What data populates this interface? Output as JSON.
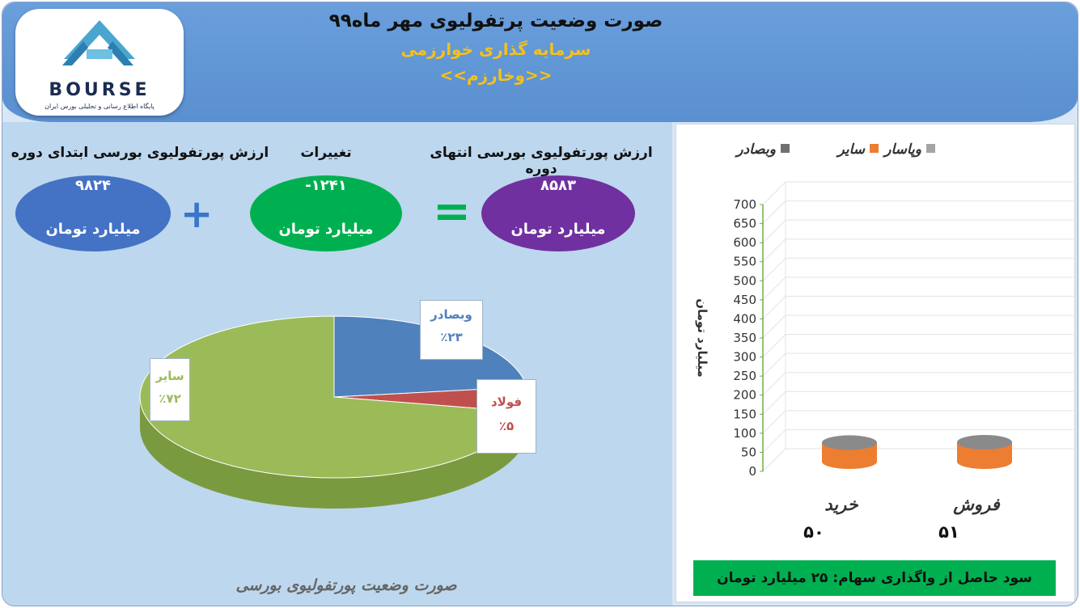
{
  "header": {
    "title": "صورت وضعیت پرتفولیوی مهر ماه۹۹",
    "company": "سرمایه گذاری خوارزمی",
    "symbol": "<<وخارزم>>"
  },
  "logo": {
    "word": "BOURSE",
    "subtitle": "پایگاه اطلاع رسانی و تحلیلی بورس ایران"
  },
  "summary": {
    "start_label": "ارزش پورتفولیوی بورسی ابتدای دوره",
    "start_value": "۹۸۲۴",
    "change_label": "تغییرات",
    "change_value": "-۱۲۴۱",
    "end_label": "ارزش پورتفولیوی بورسی انتهای دوره",
    "end_value": "۸۵۸۳",
    "unit": "میلیارد تومان",
    "plus_sign": "+",
    "equals_sign": "="
  },
  "colors": {
    "blue_oval": "#4472c4",
    "green_oval": "#00b050",
    "purple_oval": "#7030a0",
    "pie_blue": "#4f81bd",
    "pie_red": "#c0504d",
    "pie_green": "#9bbb59",
    "bar_orange": "#ed7d31"
  },
  "chart_data": [
    {
      "type": "pie",
      "title": "",
      "caption": "صورت وضعیت پورتفولیوی بورسی",
      "slices": [
        {
          "name": "وبصادر",
          "value": 23,
          "label": "٪۲۳"
        },
        {
          "name": "فولاد",
          "value": 5,
          "label": "٪۵"
        },
        {
          "name": "سایر",
          "value": 72,
          "label": "٪۷۲"
        }
      ]
    },
    {
      "type": "bar",
      "title": "",
      "legend": [
        "وبصادر",
        "سایر",
        "وپاسار"
      ],
      "legend_position": "top",
      "categories": [
        "خرید",
        "فروش"
      ],
      "category_values": [
        "۵۰",
        "۵۱"
      ],
      "series": [
        {
          "name": "سایر",
          "values": [
            50,
            51
          ]
        }
      ],
      "ylabel": "میلیارد تومان",
      "ylim": [
        0,
        700
      ],
      "yticks": [
        0,
        50,
        100,
        150,
        200,
        250,
        300,
        350,
        400,
        450,
        500,
        550,
        600,
        650,
        700
      ],
      "grid": true
    }
  ],
  "footer": {
    "profit_note": "سود حاصل از واگذاری سهام: ۲۵ میلیارد تومان"
  }
}
